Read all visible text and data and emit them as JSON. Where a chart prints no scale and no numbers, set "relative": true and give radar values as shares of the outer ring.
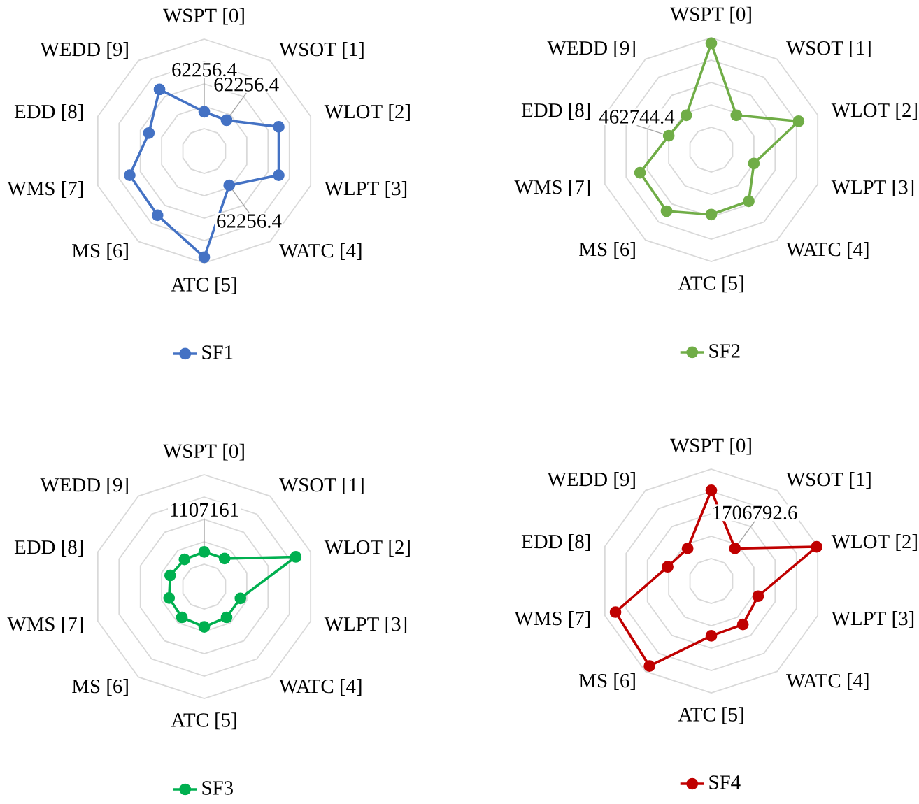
{
  "chart_data": [
    {
      "type": "radar",
      "relative": true,
      "categories": [
        "WSPT [0]",
        "WSOT [1]",
        "WLOT [2]",
        "WLPT [3]",
        "WATC [4]",
        "ATC [5]",
        "MS [6]",
        "WMS [7]",
        "EDD [8]",
        "WEDD [9]"
      ],
      "series": [
        {
          "name": "SF1",
          "color": "#4472c4",
          "values": [
            0.35,
            0.34,
            0.7,
            0.7,
            0.38,
            0.95,
            0.71,
            0.7,
            0.52,
            0.68
          ]
        }
      ],
      "marker": "circle",
      "line_style": "solid",
      "grid": true,
      "legend": "bottom",
      "annotations": [
        {
          "text": "62256.4",
          "x": "WSPT [0]"
        },
        {
          "text": "62256.4",
          "x": "WSOT [1]"
        },
        {
          "text": "62256.4",
          "x": "WATC [4]"
        }
      ]
    },
    {
      "type": "radar",
      "relative": true,
      "categories": [
        "WSPT [0]",
        "WSOT [1]",
        "WLOT [2]",
        "WLPT [3]",
        "WATC [4]",
        "ATC [5]",
        "MS [6]",
        "WMS [7]",
        "EDD [8]",
        "WEDD [9]"
      ],
      "series": [
        {
          "name": "SF2",
          "color": "#70ad47",
          "values": [
            0.95,
            0.38,
            0.82,
            0.4,
            0.57,
            0.58,
            0.68,
            0.67,
            0.4,
            0.38
          ]
        }
      ],
      "marker": "circle",
      "line_style": "solid",
      "grid": true,
      "legend": "bottom",
      "annotations": [
        {
          "text": "462744.4",
          "x": "EDD [8]"
        }
      ]
    },
    {
      "type": "radar",
      "relative": true,
      "categories": [
        "WSPT [0]",
        "WSOT [1]",
        "WLOT [2]",
        "WLPT [3]",
        "WATC [4]",
        "ATC [5]",
        "MS [6]",
        "WMS [7]",
        "EDD [8]",
        "WEDD [9]"
      ],
      "series": [
        {
          "name": "SF3",
          "color": "#00b050",
          "values": [
            0.31,
            0.31,
            0.86,
            0.34,
            0.34,
            0.36,
            0.34,
            0.33,
            0.32,
            0.3
          ]
        }
      ],
      "marker": "circle",
      "line_style": "solid",
      "grid": true,
      "legend": "bottom",
      "annotations": [
        {
          "text": "1107161",
          "x": "WSPT [0]"
        }
      ]
    },
    {
      "type": "radar",
      "relative": true,
      "categories": [
        "WSPT [0]",
        "WSOT [1]",
        "WLOT [2]",
        "WLPT [3]",
        "WATC [4]",
        "ATC [5]",
        "MS [6]",
        "WMS [7]",
        "EDD [8]",
        "WEDD [9]"
      ],
      "series": [
        {
          "name": "SF4",
          "color": "#c00000",
          "values": [
            0.81,
            0.36,
            0.99,
            0.44,
            0.48,
            0.49,
            0.94,
            0.9,
            0.41,
            0.36
          ]
        }
      ],
      "marker": "circle",
      "line_style": "solid",
      "grid": true,
      "legend": "bottom",
      "annotations": [
        {
          "text": "1706792.6",
          "x": "WSOT [1]"
        }
      ]
    }
  ]
}
